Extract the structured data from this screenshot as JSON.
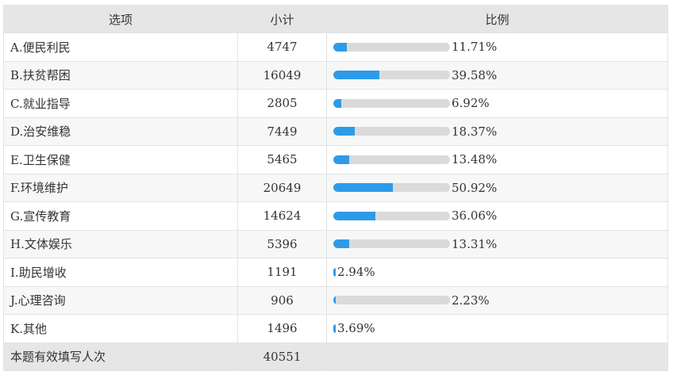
{
  "headers": {
    "option": "选项",
    "count": "小计",
    "ratio": "比例"
  },
  "rows": [
    {
      "option": "A.便民利民",
      "count": "4747",
      "pct_text": "11.71%",
      "pct": 11.71,
      "track": true
    },
    {
      "option": "B.扶贫帮困",
      "count": "16049",
      "pct_text": "39.58%",
      "pct": 39.58,
      "track": true
    },
    {
      "option": "C.就业指导",
      "count": "2805",
      "pct_text": "6.92%",
      "pct": 6.92,
      "track": true
    },
    {
      "option": "D.治安维稳",
      "count": "7449",
      "pct_text": "18.37%",
      "pct": 18.37,
      "track": true
    },
    {
      "option": "E.卫生保健",
      "count": "5465",
      "pct_text": "13.48%",
      "pct": 13.48,
      "track": true
    },
    {
      "option": "F.环境维护",
      "count": "20649",
      "pct_text": "50.92%",
      "pct": 50.92,
      "track": true
    },
    {
      "option": "G.宣传教育",
      "count": "14624",
      "pct_text": "36.06%",
      "pct": 36.06,
      "track": true
    },
    {
      "option": "H.文体娱乐",
      "count": "5396",
      "pct_text": "13.31%",
      "pct": 13.31,
      "track": true
    },
    {
      "option": "I.助民增收",
      "count": "1191",
      "pct_text": "2.94%",
      "pct": 2.94,
      "track": false
    },
    {
      "option": "J.心理咨询",
      "count": "906",
      "pct_text": "2.23%",
      "pct": 2.23,
      "track": true
    },
    {
      "option": "K.其他",
      "count": "1496",
      "pct_text": "3.69%",
      "pct": 3.69,
      "track": false
    }
  ],
  "footer": {
    "label": "本题有效填写人次",
    "count": "40551"
  },
  "colors": {
    "bar_fill": "#2e9be9",
    "bar_track": "#dadada",
    "header_bg": "#e6e6e6"
  }
}
